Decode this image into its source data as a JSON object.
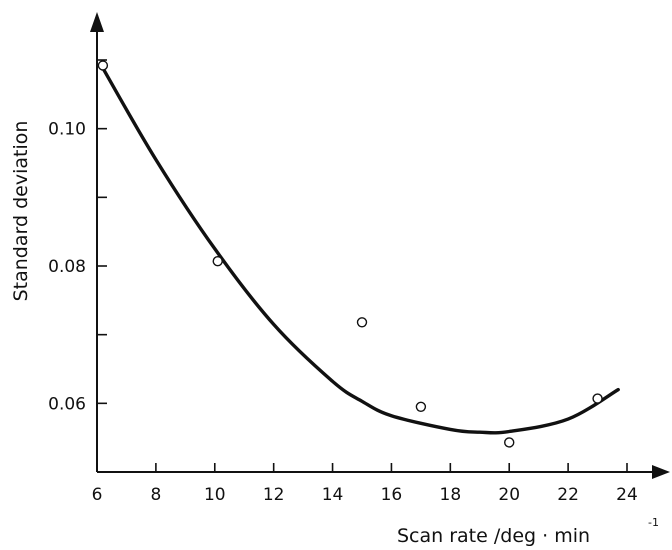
{
  "chart_data": {
    "type": "scatter",
    "title": "",
    "xlabel": "Scan rate /deg · min",
    "xlabel_superscript": "-1",
    "ylabel": "Standard deviation",
    "xlim": [
      6,
      24
    ],
    "ylim": [
      0.05,
      0.11
    ],
    "x_ticks": [
      6,
      8,
      10,
      12,
      14,
      16,
      18,
      20,
      22,
      24
    ],
    "x_tick_labels": [
      "6",
      "8",
      "10",
      "12",
      "14",
      "16",
      "18",
      "20",
      "22",
      "24"
    ],
    "y_ticks": [
      0.06,
      0.07,
      0.08,
      0.09,
      0.1,
      0.11
    ],
    "y_tick_labels": [
      {
        "value": 0.06,
        "label": "0.06"
      },
      {
        "value": 0.08,
        "label": "0.08"
      },
      {
        "value": 0.1,
        "label": "0.10"
      }
    ],
    "grid": false,
    "points": [
      {
        "x": 6.2,
        "y": 0.1092
      },
      {
        "x": 10.1,
        "y": 0.0807
      },
      {
        "x": 15.0,
        "y": 0.0718
      },
      {
        "x": 17.0,
        "y": 0.0595
      },
      {
        "x": 20.0,
        "y": 0.0543
      },
      {
        "x": 23.0,
        "y": 0.0607
      }
    ],
    "fit_curve": [
      {
        "x": 6.2,
        "y": 0.1088
      },
      {
        "x": 8,
        "y": 0.0955
      },
      {
        "x": 10,
        "y": 0.0825
      },
      {
        "x": 12,
        "y": 0.0715
      },
      {
        "x": 14,
        "y": 0.0632
      },
      {
        "x": 15,
        "y": 0.0603
      },
      {
        "x": 16,
        "y": 0.0582
      },
      {
        "x": 18,
        "y": 0.0562
      },
      {
        "x": 19,
        "y": 0.0558
      },
      {
        "x": 20,
        "y": 0.0559
      },
      {
        "x": 22,
        "y": 0.0577
      },
      {
        "x": 23.7,
        "y": 0.062
      }
    ],
    "colors": {
      "ink": "#111111",
      "background": "#ffffff"
    }
  }
}
